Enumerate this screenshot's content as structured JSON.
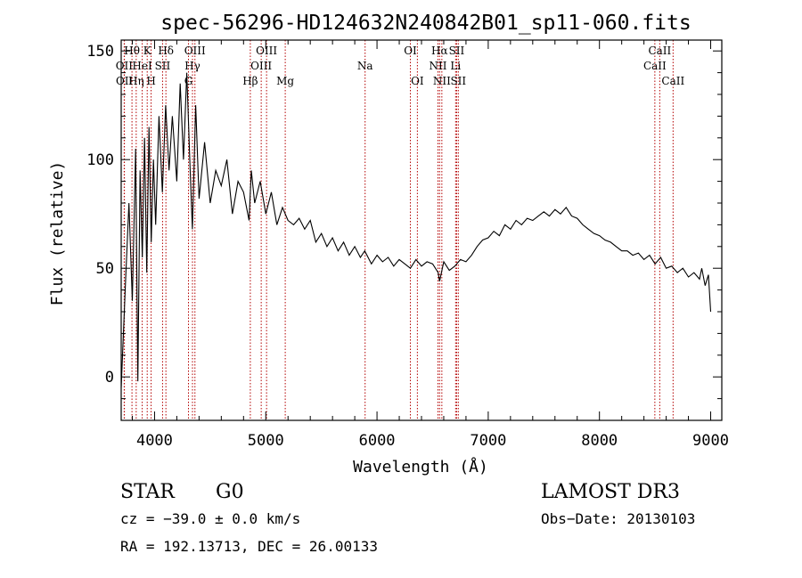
{
  "chart_data": {
    "type": "line",
    "title": "spec-56296-HD124632N240842B01_sp11-060.fits",
    "xlabel": "Wavelength (Å)",
    "ylabel": "Flux (relative)",
    "xlim": [
      3700,
      9100
    ],
    "ylim": [
      -20,
      155
    ],
    "xticks": [
      4000,
      5000,
      6000,
      7000,
      8000,
      9000
    ],
    "yticks": [
      0,
      50,
      100,
      150
    ],
    "grid": false,
    "series": [
      {
        "name": "flux",
        "x": [
          3700,
          3740,
          3770,
          3800,
          3830,
          3850,
          3870,
          3890,
          3910,
          3930,
          3950,
          3970,
          3990,
          4010,
          4040,
          4070,
          4100,
          4130,
          4160,
          4200,
          4230,
          4260,
          4290,
          4320,
          4340,
          4370,
          4400,
          4450,
          4500,
          4550,
          4600,
          4650,
          4700,
          4750,
          4800,
          4850,
          4870,
          4900,
          4950,
          5000,
          5050,
          5100,
          5150,
          5200,
          5250,
          5300,
          5350,
          5400,
          5450,
          5500,
          5550,
          5600,
          5650,
          5700,
          5750,
          5800,
          5850,
          5890,
          5950,
          6000,
          6050,
          6100,
          6150,
          6200,
          6250,
          6300,
          6350,
          6400,
          6450,
          6500,
          6550,
          6563,
          6600,
          6650,
          6700,
          6750,
          6800,
          6850,
          6900,
          6950,
          7000,
          7050,
          7100,
          7150,
          7200,
          7250,
          7300,
          7350,
          7400,
          7450,
          7500,
          7550,
          7600,
          7650,
          7700,
          7750,
          7800,
          7850,
          7900,
          7950,
          8000,
          8050,
          8100,
          8150,
          8200,
          8250,
          8300,
          8350,
          8400,
          8450,
          8500,
          8550,
          8600,
          8650,
          8700,
          8750,
          8800,
          8850,
          8900,
          8920,
          8950,
          8980,
          9000
        ],
        "y": [
          -5,
          45,
          80,
          35,
          105,
          -2,
          95,
          55,
          110,
          48,
          115,
          62,
          100,
          70,
          120,
          85,
          125,
          95,
          120,
          90,
          135,
          100,
          140,
          95,
          68,
          125,
          82,
          108,
          80,
          95,
          88,
          100,
          75,
          90,
          85,
          72,
          95,
          80,
          90,
          75,
          85,
          70,
          78,
          72,
          70,
          73,
          68,
          72,
          62,
          66,
          60,
          64,
          58,
          62,
          56,
          60,
          55,
          58,
          52,
          56,
          53,
          55,
          51,
          54,
          52,
          50,
          54,
          51,
          53,
          52,
          48,
          44,
          53,
          49,
          51,
          54,
          53,
          56,
          60,
          63,
          64,
          67,
          65,
          70,
          68,
          72,
          70,
          73,
          72,
          74,
          76,
          74,
          77,
          75,
          78,
          74,
          73,
          70,
          68,
          66,
          65,
          63,
          62,
          60,
          58,
          58,
          56,
          57,
          54,
          56,
          52,
          55,
          50,
          51,
          48,
          50,
          46,
          48,
          45,
          50,
          42,
          47,
          30
        ]
      }
    ],
    "spectral_lines": [
      {
        "label": "Hθ",
        "x": 3797,
        "row": 0
      },
      {
        "label": "OII",
        "x": 3727,
        "row": 1
      },
      {
        "label": "OII",
        "x": 3729,
        "row": 2
      },
      {
        "label": "Hη",
        "x": 3835,
        "row": 2
      },
      {
        "label": "HeI",
        "x": 3889,
        "row": 1
      },
      {
        "label": "K",
        "x": 3934,
        "row": 0
      },
      {
        "label": "H",
        "x": 3969,
        "row": 2
      },
      {
        "label": "SII",
        "x": 4072,
        "row": 1
      },
      {
        "label": "Hδ",
        "x": 4102,
        "row": 0
      },
      {
        "label": "G",
        "x": 4305,
        "row": 2
      },
      {
        "label": "Hγ",
        "x": 4341,
        "row": 1
      },
      {
        "label": "OIII",
        "x": 4363,
        "row": 0
      },
      {
        "label": "Hβ",
        "x": 4861,
        "row": 2
      },
      {
        "label": "OIII",
        "x": 4959,
        "row": 1
      },
      {
        "label": "OIII",
        "x": 5007,
        "row": 0
      },
      {
        "label": "Mg",
        "x": 5175,
        "row": 2
      },
      {
        "label": "Na",
        "x": 5893,
        "row": 1
      },
      {
        "label": "OI",
        "x": 6300,
        "row": 0
      },
      {
        "label": "OI",
        "x": 6363,
        "row": 2
      },
      {
        "label": "NII",
        "x": 6548,
        "row": 1
      },
      {
        "label": "Hα",
        "x": 6563,
        "row": 0
      },
      {
        "label": "NII",
        "x": 6583,
        "row": 2
      },
      {
        "label": "Li",
        "x": 6707,
        "row": 1
      },
      {
        "label": "SII",
        "x": 6716,
        "row": 0
      },
      {
        "label": "SII",
        "x": 6731,
        "row": 2
      },
      {
        "label": "CaII",
        "x": 8498,
        "row": 1
      },
      {
        "label": "CaII",
        "x": 8542,
        "row": 0
      },
      {
        "label": "CaII",
        "x": 8662,
        "row": 2
      }
    ]
  },
  "info": {
    "object_class": "STAR",
    "subclass": "G0",
    "survey": "LAMOST DR3",
    "cz": "cz = −39.0 ± 0.0 km/s",
    "obs_date": "Obs−Date: 20130103",
    "coords": "RA = 192.13713, DEC =  26.00133"
  },
  "colors": {
    "line": "#000000",
    "marker": "#b30000",
    "background": "#ffffff"
  }
}
